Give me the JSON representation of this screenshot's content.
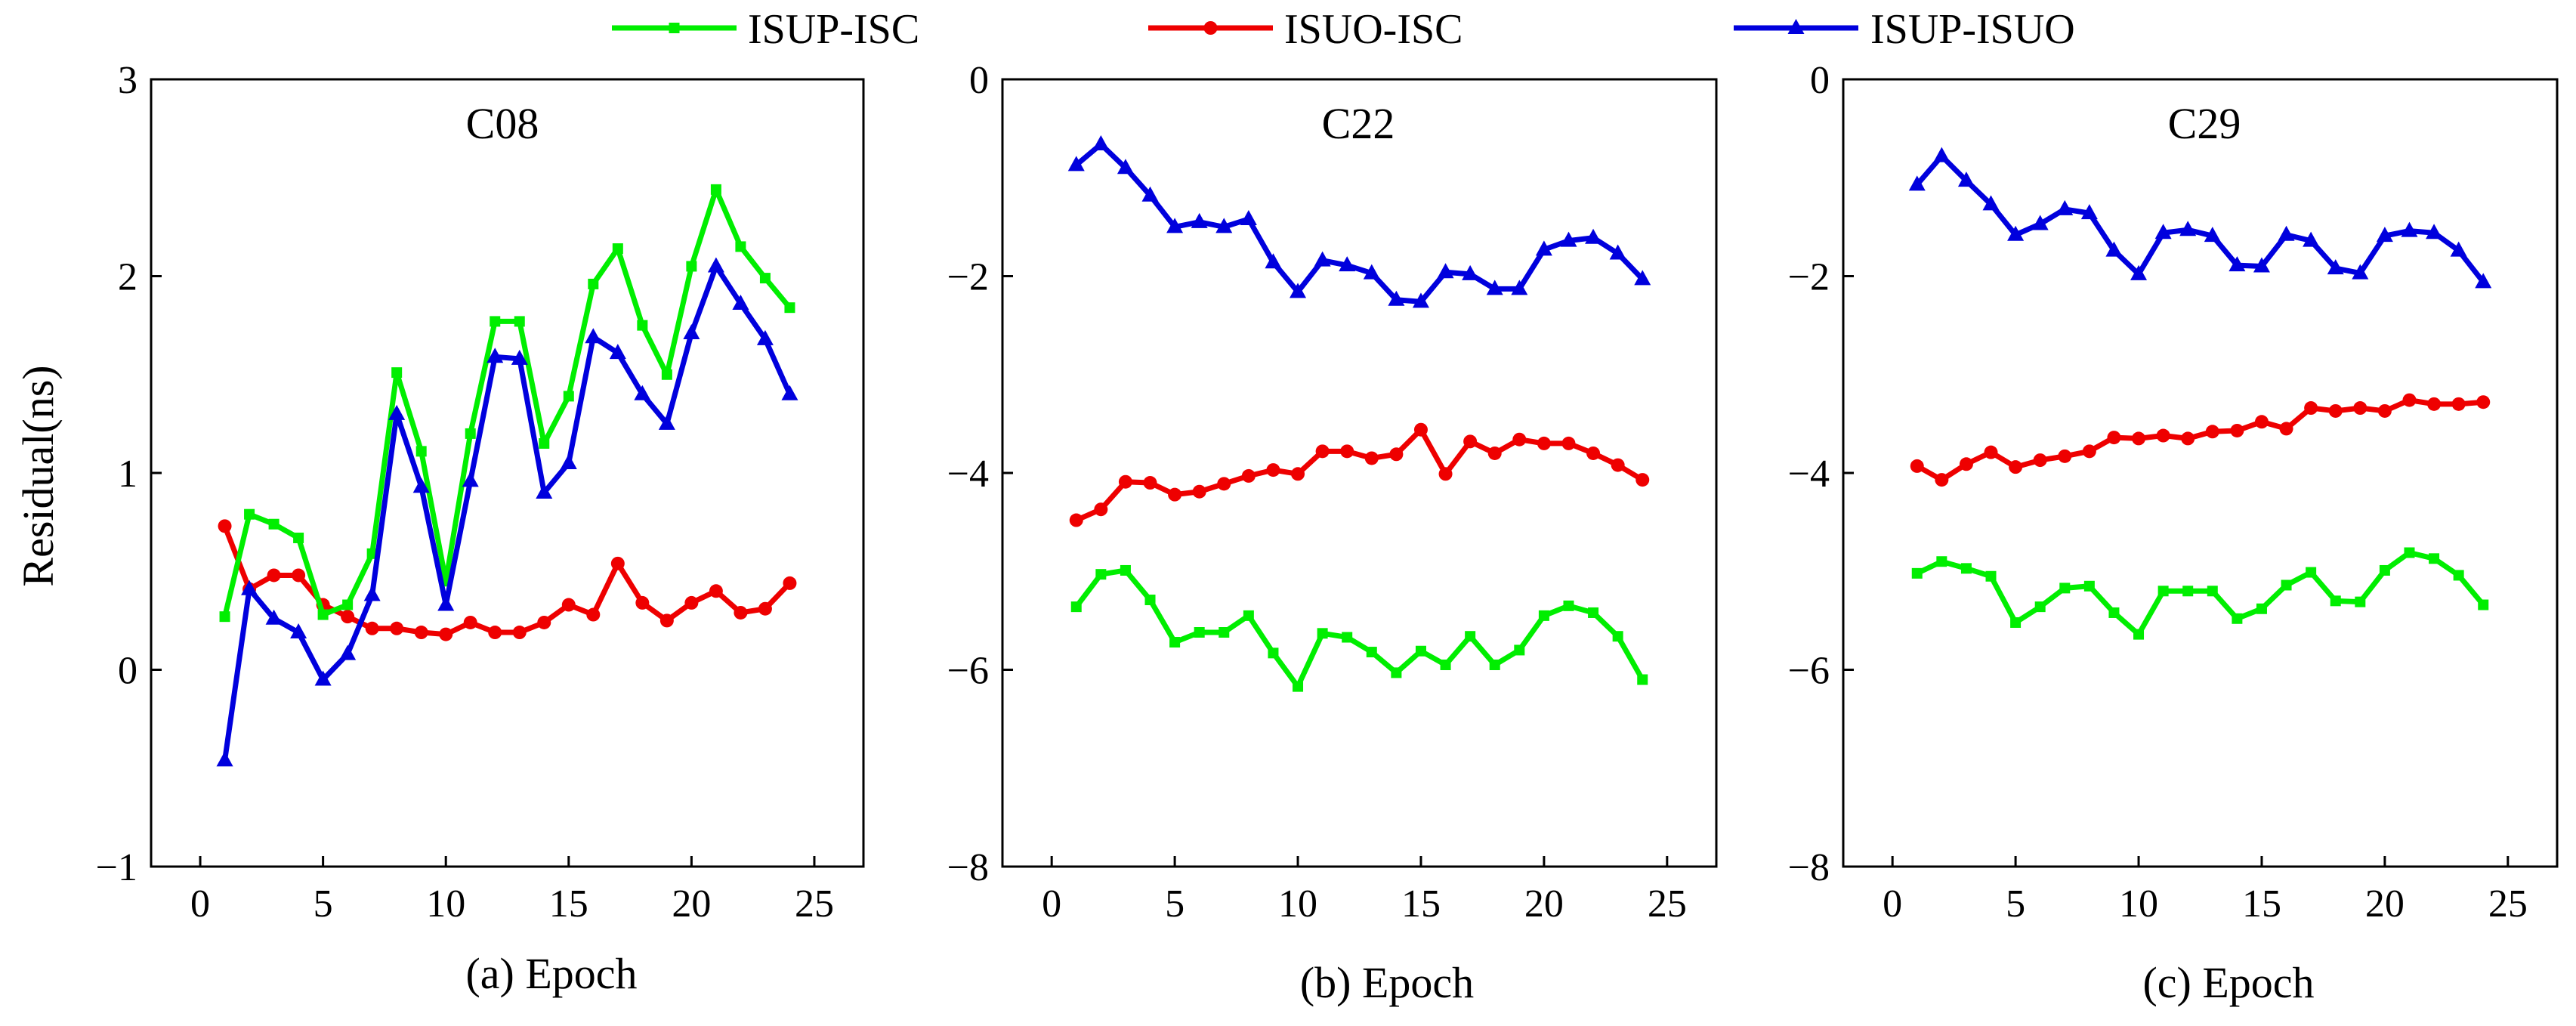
{
  "legend": [
    {
      "label": "ISUP-ISC",
      "color": "#00ee00",
      "marker": "square"
    },
    {
      "label": "ISUO-ISC",
      "color": "#ee0000",
      "marker": "circle"
    },
    {
      "label": "ISUP-ISUO",
      "color": "#0000dd",
      "marker": "triangle"
    }
  ],
  "ylabel": "Residual(ns)",
  "chart_data": [
    {
      "type": "line",
      "title": "C08",
      "xlabel": "(a) Epoch",
      "ylabel": "Residual(ns)",
      "xlim": [
        -2,
        27
      ],
      "ylim": [
        -1,
        3
      ],
      "xticks": [
        0,
        5,
        10,
        15,
        20,
        25
      ],
      "yticks": [
        -1,
        0,
        1,
        2,
        3
      ],
      "ytick_labels": [
        "−1",
        "0",
        "1",
        "2",
        "3"
      ],
      "x": [
        1,
        2,
        3,
        4,
        5,
        6,
        7,
        8,
        9,
        10,
        11,
        12,
        13,
        14,
        15,
        16,
        17,
        18,
        19,
        20,
        21,
        22,
        23,
        24
      ],
      "series": [
        {
          "name": "ISUP-ISC",
          "values": [
            0.27,
            0.79,
            0.74,
            0.67,
            0.28,
            0.33,
            0.59,
            1.51,
            1.11,
            0.45,
            1.2,
            1.77,
            1.77,
            1.15,
            1.39,
            1.96,
            2.14,
            1.75,
            1.5,
            2.05,
            2.44,
            2.15,
            1.99,
            1.84
          ]
        },
        {
          "name": "ISUO-ISC",
          "values": [
            0.73,
            0.41,
            0.48,
            0.48,
            0.33,
            0.27,
            0.21,
            0.21,
            0.19,
            0.18,
            0.24,
            0.19,
            0.19,
            0.24,
            0.33,
            0.28,
            0.54,
            0.34,
            0.25,
            0.34,
            0.4,
            0.29,
            0.31,
            0.44
          ]
        },
        {
          "name": "ISUP-ISUO",
          "values": [
            -0.46,
            0.41,
            0.26,
            0.19,
            -0.05,
            0.08,
            0.38,
            1.3,
            0.93,
            0.33,
            0.96,
            1.59,
            1.58,
            0.9,
            1.05,
            1.69,
            1.61,
            1.4,
            1.25,
            1.71,
            2.05,
            1.86,
            1.68,
            1.4
          ]
        }
      ]
    },
    {
      "type": "line",
      "title": "C22",
      "xlabel": "(b) Epoch",
      "ylabel": "",
      "xlim": [
        -2,
        27
      ],
      "ylim": [
        -8,
        0
      ],
      "xticks": [
        0,
        5,
        10,
        15,
        20,
        25
      ],
      "yticks": [
        -8,
        -6,
        -4,
        -2,
        0
      ],
      "ytick_labels": [
        "−8",
        "−6",
        "−4",
        "−2",
        "0"
      ],
      "x": [
        1,
        2,
        3,
        4,
        5,
        6,
        7,
        8,
        9,
        10,
        11,
        12,
        13,
        14,
        15,
        16,
        17,
        18,
        19,
        20,
        21,
        22,
        23,
        24
      ],
      "series": [
        {
          "name": "ISUP-ISC",
          "values": [
            -5.36,
            -5.03,
            -4.99,
            -5.29,
            -5.72,
            -5.62,
            -5.62,
            -5.45,
            -5.83,
            -6.17,
            -5.63,
            -5.67,
            -5.82,
            -6.03,
            -5.81,
            -5.95,
            -5.66,
            -5.95,
            -5.8,
            -5.45,
            -5.35,
            -5.42,
            -5.66,
            -6.1
          ]
        },
        {
          "name": "ISUO-ISC",
          "values": [
            -4.48,
            -4.37,
            -4.09,
            -4.1,
            -4.22,
            -4.19,
            -4.11,
            -4.03,
            -3.97,
            -4.01,
            -3.78,
            -3.78,
            -3.85,
            -3.81,
            -3.56,
            -4.01,
            -3.68,
            -3.8,
            -3.66,
            -3.7,
            -3.7,
            -3.8,
            -3.92,
            -4.07
          ]
        },
        {
          "name": "ISUP-ISUO",
          "values": [
            -0.87,
            -0.66,
            -0.9,
            -1.18,
            -1.5,
            -1.45,
            -1.5,
            -1.42,
            -1.86,
            -2.16,
            -1.84,
            -1.89,
            -1.97,
            -2.24,
            -2.26,
            -1.96,
            -1.98,
            -2.13,
            -2.13,
            -1.73,
            -1.64,
            -1.61,
            -1.77,
            -2.03
          ]
        }
      ]
    },
    {
      "type": "line",
      "title": "C29",
      "xlabel": "(c) Epoch",
      "ylabel": "",
      "xlim": [
        -2,
        27
      ],
      "ylim": [
        -8,
        0
      ],
      "xticks": [
        0,
        5,
        10,
        15,
        20,
        25
      ],
      "yticks": [
        -8,
        -6,
        -4,
        -2,
        0
      ],
      "ytick_labels": [
        "−8",
        "−6",
        "−4",
        "−2",
        "0"
      ],
      "x": [
        1,
        2,
        3,
        4,
        5,
        6,
        7,
        8,
        9,
        10,
        11,
        12,
        13,
        14,
        15,
        16,
        17,
        18,
        19,
        20,
        21,
        22,
        23,
        24
      ],
      "series": [
        {
          "name": "ISUP-ISC",
          "values": [
            -5.02,
            -4.9,
            -4.97,
            -5.05,
            -5.52,
            -5.36,
            -5.17,
            -5.15,
            -5.42,
            -5.64,
            -5.2,
            -5.2,
            -5.2,
            -5.48,
            -5.38,
            -5.14,
            -5.01,
            -5.3,
            -5.31,
            -4.99,
            -4.81,
            -4.87,
            -5.04,
            -5.34
          ]
        },
        {
          "name": "ISUO-ISC",
          "values": [
            -3.93,
            -4.07,
            -3.91,
            -3.79,
            -3.94,
            -3.87,
            -3.83,
            -3.78,
            -3.64,
            -3.65,
            -3.62,
            -3.65,
            -3.58,
            -3.57,
            -3.48,
            -3.55,
            -3.34,
            -3.37,
            -3.34,
            -3.37,
            -3.26,
            -3.3,
            -3.3,
            -3.28
          ]
        },
        {
          "name": "ISUP-ISUO",
          "values": [
            -1.07,
            -0.78,
            -1.03,
            -1.27,
            -1.58,
            -1.47,
            -1.32,
            -1.36,
            -1.74,
            -1.98,
            -1.56,
            -1.53,
            -1.59,
            -1.89,
            -1.9,
            -1.58,
            -1.64,
            -1.92,
            -1.97,
            -1.59,
            -1.54,
            -1.56,
            -1.74,
            -2.06
          ]
        }
      ]
    }
  ]
}
